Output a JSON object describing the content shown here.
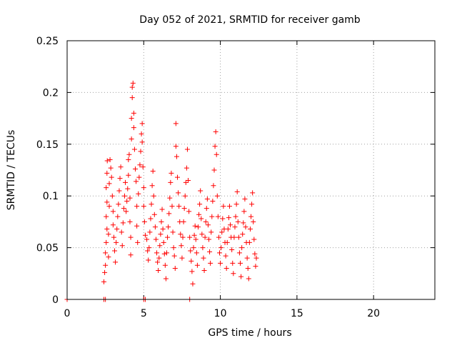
{
  "chart_data": {
    "type": "scatter",
    "title": "Day 052 of 2021, SRMTID for receiver gamb",
    "xlabel": "GPS time / hours",
    "ylabel": "SRMTID / TECUs",
    "xlim": [
      0,
      24
    ],
    "ylim": [
      0,
      0.25
    ],
    "grid": true,
    "x_ticks": [
      0,
      5,
      10,
      15,
      20
    ],
    "x_tick_labels": [
      "0",
      "5",
      "10",
      "15",
      "20"
    ],
    "y_ticks": [
      0,
      0.05,
      0.1,
      0.15,
      0.2,
      0.25
    ],
    "y_tick_labels": [
      "0",
      "0.05",
      "0.1",
      "0.15",
      "0.2",
      "0.25"
    ],
    "marker": "+",
    "marker_color": "#ff0000",
    "series": [
      {
        "name": "SRMTID",
        "points": [
          [
            0.0,
            0.0
          ],
          [
            2.4,
            0.0
          ],
          [
            2.5,
            0.0
          ],
          [
            5.0,
            0.0
          ],
          [
            5.1,
            0.0
          ],
          [
            8.0,
            0.0
          ],
          [
            2.4,
            0.017
          ],
          [
            2.45,
            0.026
          ],
          [
            2.5,
            0.033
          ],
          [
            2.5,
            0.045
          ],
          [
            2.55,
            0.055
          ],
          [
            2.6,
            0.068
          ],
          [
            2.55,
            0.08
          ],
          [
            2.6,
            0.094
          ],
          [
            2.55,
            0.108
          ],
          [
            2.6,
            0.122
          ],
          [
            2.62,
            0.134
          ],
          [
            2.7,
            0.041
          ],
          [
            2.7,
            0.063
          ],
          [
            2.75,
            0.09
          ],
          [
            2.75,
            0.112
          ],
          [
            2.8,
            0.135
          ],
          [
            2.85,
            0.127
          ],
          [
            2.9,
            0.118
          ],
          [
            2.95,
            0.1
          ],
          [
            3.0,
            0.085
          ],
          [
            3.0,
            0.072
          ],
          [
            3.05,
            0.06
          ],
          [
            3.1,
            0.047
          ],
          [
            3.15,
            0.036
          ],
          [
            3.2,
            0.055
          ],
          [
            3.25,
            0.068
          ],
          [
            3.3,
            0.08
          ],
          [
            3.35,
            0.092
          ],
          [
            3.4,
            0.105
          ],
          [
            3.45,
            0.117
          ],
          [
            3.5,
            0.128
          ],
          [
            3.55,
            0.065
          ],
          [
            3.6,
            0.052
          ],
          [
            3.65,
            0.074
          ],
          [
            3.7,
            0.088
          ],
          [
            3.75,
            0.1
          ],
          [
            3.8,
            0.113
          ],
          [
            3.85,
            0.085
          ],
          [
            3.9,
            0.095
          ],
          [
            3.95,
            0.107
          ],
          [
            4.0,
            0.12
          ],
          [
            4.0,
            0.135
          ],
          [
            4.05,
            0.14
          ],
          [
            4.1,
            0.098
          ],
          [
            4.1,
            0.075
          ],
          [
            4.15,
            0.06
          ],
          [
            4.15,
            0.043
          ],
          [
            4.2,
            0.155
          ],
          [
            4.2,
            0.175
          ],
          [
            4.25,
            0.195
          ],
          [
            4.25,
            0.205
          ],
          [
            4.3,
            0.209
          ],
          [
            4.35,
            0.18
          ],
          [
            4.35,
            0.166
          ],
          [
            4.4,
            0.145
          ],
          [
            4.45,
            0.126
          ],
          [
            4.5,
            0.114
          ],
          [
            4.55,
            0.09
          ],
          [
            4.55,
            0.071
          ],
          [
            4.6,
            0.055
          ],
          [
            4.65,
            0.102
          ],
          [
            4.7,
            0.118
          ],
          [
            4.75,
            0.13
          ],
          [
            4.8,
            0.143
          ],
          [
            4.85,
            0.16
          ],
          [
            4.9,
            0.17
          ],
          [
            4.9,
            0.152
          ],
          [
            4.95,
            0.128
          ],
          [
            5.0,
            0.108
          ],
          [
            5.0,
            0.09
          ],
          [
            5.05,
            0.075
          ],
          [
            5.1,
            0.062
          ],
          [
            5.2,
            0.058
          ],
          [
            5.25,
            0.047
          ],
          [
            5.3,
            0.038
          ],
          [
            5.35,
            0.05
          ],
          [
            5.4,
            0.065
          ],
          [
            5.45,
            0.078
          ],
          [
            5.5,
            0.092
          ],
          [
            5.55,
            0.11
          ],
          [
            5.6,
            0.124
          ],
          [
            5.65,
            0.1
          ],
          [
            5.7,
            0.082
          ],
          [
            5.75,
            0.07
          ],
          [
            5.8,
            0.058
          ],
          [
            5.85,
            0.045
          ],
          [
            5.9,
            0.036
          ],
          [
            5.95,
            0.028
          ],
          [
            6.0,
            0.04
          ],
          [
            6.05,
            0.052
          ],
          [
            6.1,
            0.063
          ],
          [
            6.15,
            0.075
          ],
          [
            6.2,
            0.087
          ],
          [
            6.25,
            0.068
          ],
          [
            6.3,
            0.055
          ],
          [
            6.35,
            0.044
          ],
          [
            6.4,
            0.033
          ],
          [
            6.45,
            0.02
          ],
          [
            6.5,
            0.045
          ],
          [
            6.55,
            0.06
          ],
          [
            6.6,
            0.07
          ],
          [
            6.65,
            0.083
          ],
          [
            6.7,
            0.098
          ],
          [
            6.75,
            0.113
          ],
          [
            6.8,
            0.122
          ],
          [
            6.85,
            0.09
          ],
          [
            6.9,
            0.065
          ],
          [
            6.95,
            0.05
          ],
          [
            7.0,
            0.042
          ],
          [
            7.05,
            0.03
          ],
          [
            7.1,
            0.148
          ],
          [
            7.1,
            0.17
          ],
          [
            7.15,
            0.138
          ],
          [
            7.2,
            0.118
          ],
          [
            7.25,
            0.103
          ],
          [
            7.3,
            0.09
          ],
          [
            7.35,
            0.075
          ],
          [
            7.4,
            0.063
          ],
          [
            7.45,
            0.052
          ],
          [
            7.5,
            0.04
          ],
          [
            7.55,
            0.06
          ],
          [
            7.6,
            0.075
          ],
          [
            7.65,
            0.088
          ],
          [
            7.7,
            0.1
          ],
          [
            7.75,
            0.113
          ],
          [
            7.8,
            0.127
          ],
          [
            7.85,
            0.145
          ],
          [
            7.9,
            0.115
          ],
          [
            7.95,
            0.085
          ],
          [
            8.0,
            0.06
          ],
          [
            8.05,
            0.047
          ],
          [
            8.1,
            0.037
          ],
          [
            8.15,
            0.027
          ],
          [
            8.2,
            0.015
          ],
          [
            8.25,
            0.05
          ],
          [
            8.3,
            0.062
          ],
          [
            8.35,
            0.071
          ],
          [
            8.4,
            0.058
          ],
          [
            8.45,
            0.045
          ],
          [
            8.5,
            0.033
          ],
          [
            8.55,
            0.07
          ],
          [
            8.6,
            0.082
          ],
          [
            8.65,
            0.092
          ],
          [
            8.7,
            0.105
          ],
          [
            8.75,
            0.078
          ],
          [
            8.8,
            0.063
          ],
          [
            8.85,
            0.05
          ],
          [
            8.9,
            0.04
          ],
          [
            8.95,
            0.028
          ],
          [
            9.0,
            0.06
          ],
          [
            9.05,
            0.075
          ],
          [
            9.1,
            0.088
          ],
          [
            9.15,
            0.097
          ],
          [
            9.2,
            0.072
          ],
          [
            9.25,
            0.058
          ],
          [
            9.3,
            0.046
          ],
          [
            9.35,
            0.035
          ],
          [
            9.4,
            0.065
          ],
          [
            9.45,
            0.08
          ],
          [
            9.5,
            0.095
          ],
          [
            9.55,
            0.11
          ],
          [
            9.6,
            0.125
          ],
          [
            9.65,
            0.148
          ],
          [
            9.7,
            0.162
          ],
          [
            9.75,
            0.14
          ],
          [
            9.8,
            0.1
          ],
          [
            9.85,
            0.08
          ],
          [
            9.9,
            0.06
          ],
          [
            9.95,
            0.045
          ],
          [
            10.0,
            0.035
          ],
          [
            10.05,
            0.05
          ],
          [
            10.1,
            0.065
          ],
          [
            10.15,
            0.078
          ],
          [
            10.2,
            0.09
          ],
          [
            10.25,
            0.068
          ],
          [
            10.3,
            0.055
          ],
          [
            10.35,
            0.042
          ],
          [
            10.4,
            0.03
          ],
          [
            10.45,
            0.055
          ],
          [
            10.5,
            0.068
          ],
          [
            10.55,
            0.079
          ],
          [
            10.6,
            0.09
          ],
          [
            10.65,
            0.072
          ],
          [
            10.7,
            0.06
          ],
          [
            10.75,
            0.048
          ],
          [
            10.8,
            0.035
          ],
          [
            10.85,
            0.025
          ],
          [
            10.9,
            0.06
          ],
          [
            10.95,
            0.07
          ],
          [
            11.0,
            0.08
          ],
          [
            11.05,
            0.092
          ],
          [
            11.1,
            0.104
          ],
          [
            11.15,
            0.075
          ],
          [
            11.2,
            0.06
          ],
          [
            11.25,
            0.045
          ],
          [
            11.3,
            0.035
          ],
          [
            11.35,
            0.022
          ],
          [
            11.4,
            0.05
          ],
          [
            11.45,
            0.063
          ],
          [
            11.5,
            0.074
          ],
          [
            11.55,
            0.085
          ],
          [
            11.6,
            0.097
          ],
          [
            11.65,
            0.07
          ],
          [
            11.7,
            0.055
          ],
          [
            11.75,
            0.04
          ],
          [
            11.8,
            0.03
          ],
          [
            11.85,
            0.02
          ],
          [
            11.9,
            0.055
          ],
          [
            11.95,
            0.068
          ],
          [
            12.0,
            0.08
          ],
          [
            12.05,
            0.092
          ],
          [
            12.1,
            0.103
          ],
          [
            12.15,
            0.075
          ],
          [
            12.2,
            0.058
          ],
          [
            12.25,
            0.044
          ],
          [
            12.3,
            0.032
          ],
          [
            12.35,
            0.04
          ]
        ]
      }
    ]
  }
}
